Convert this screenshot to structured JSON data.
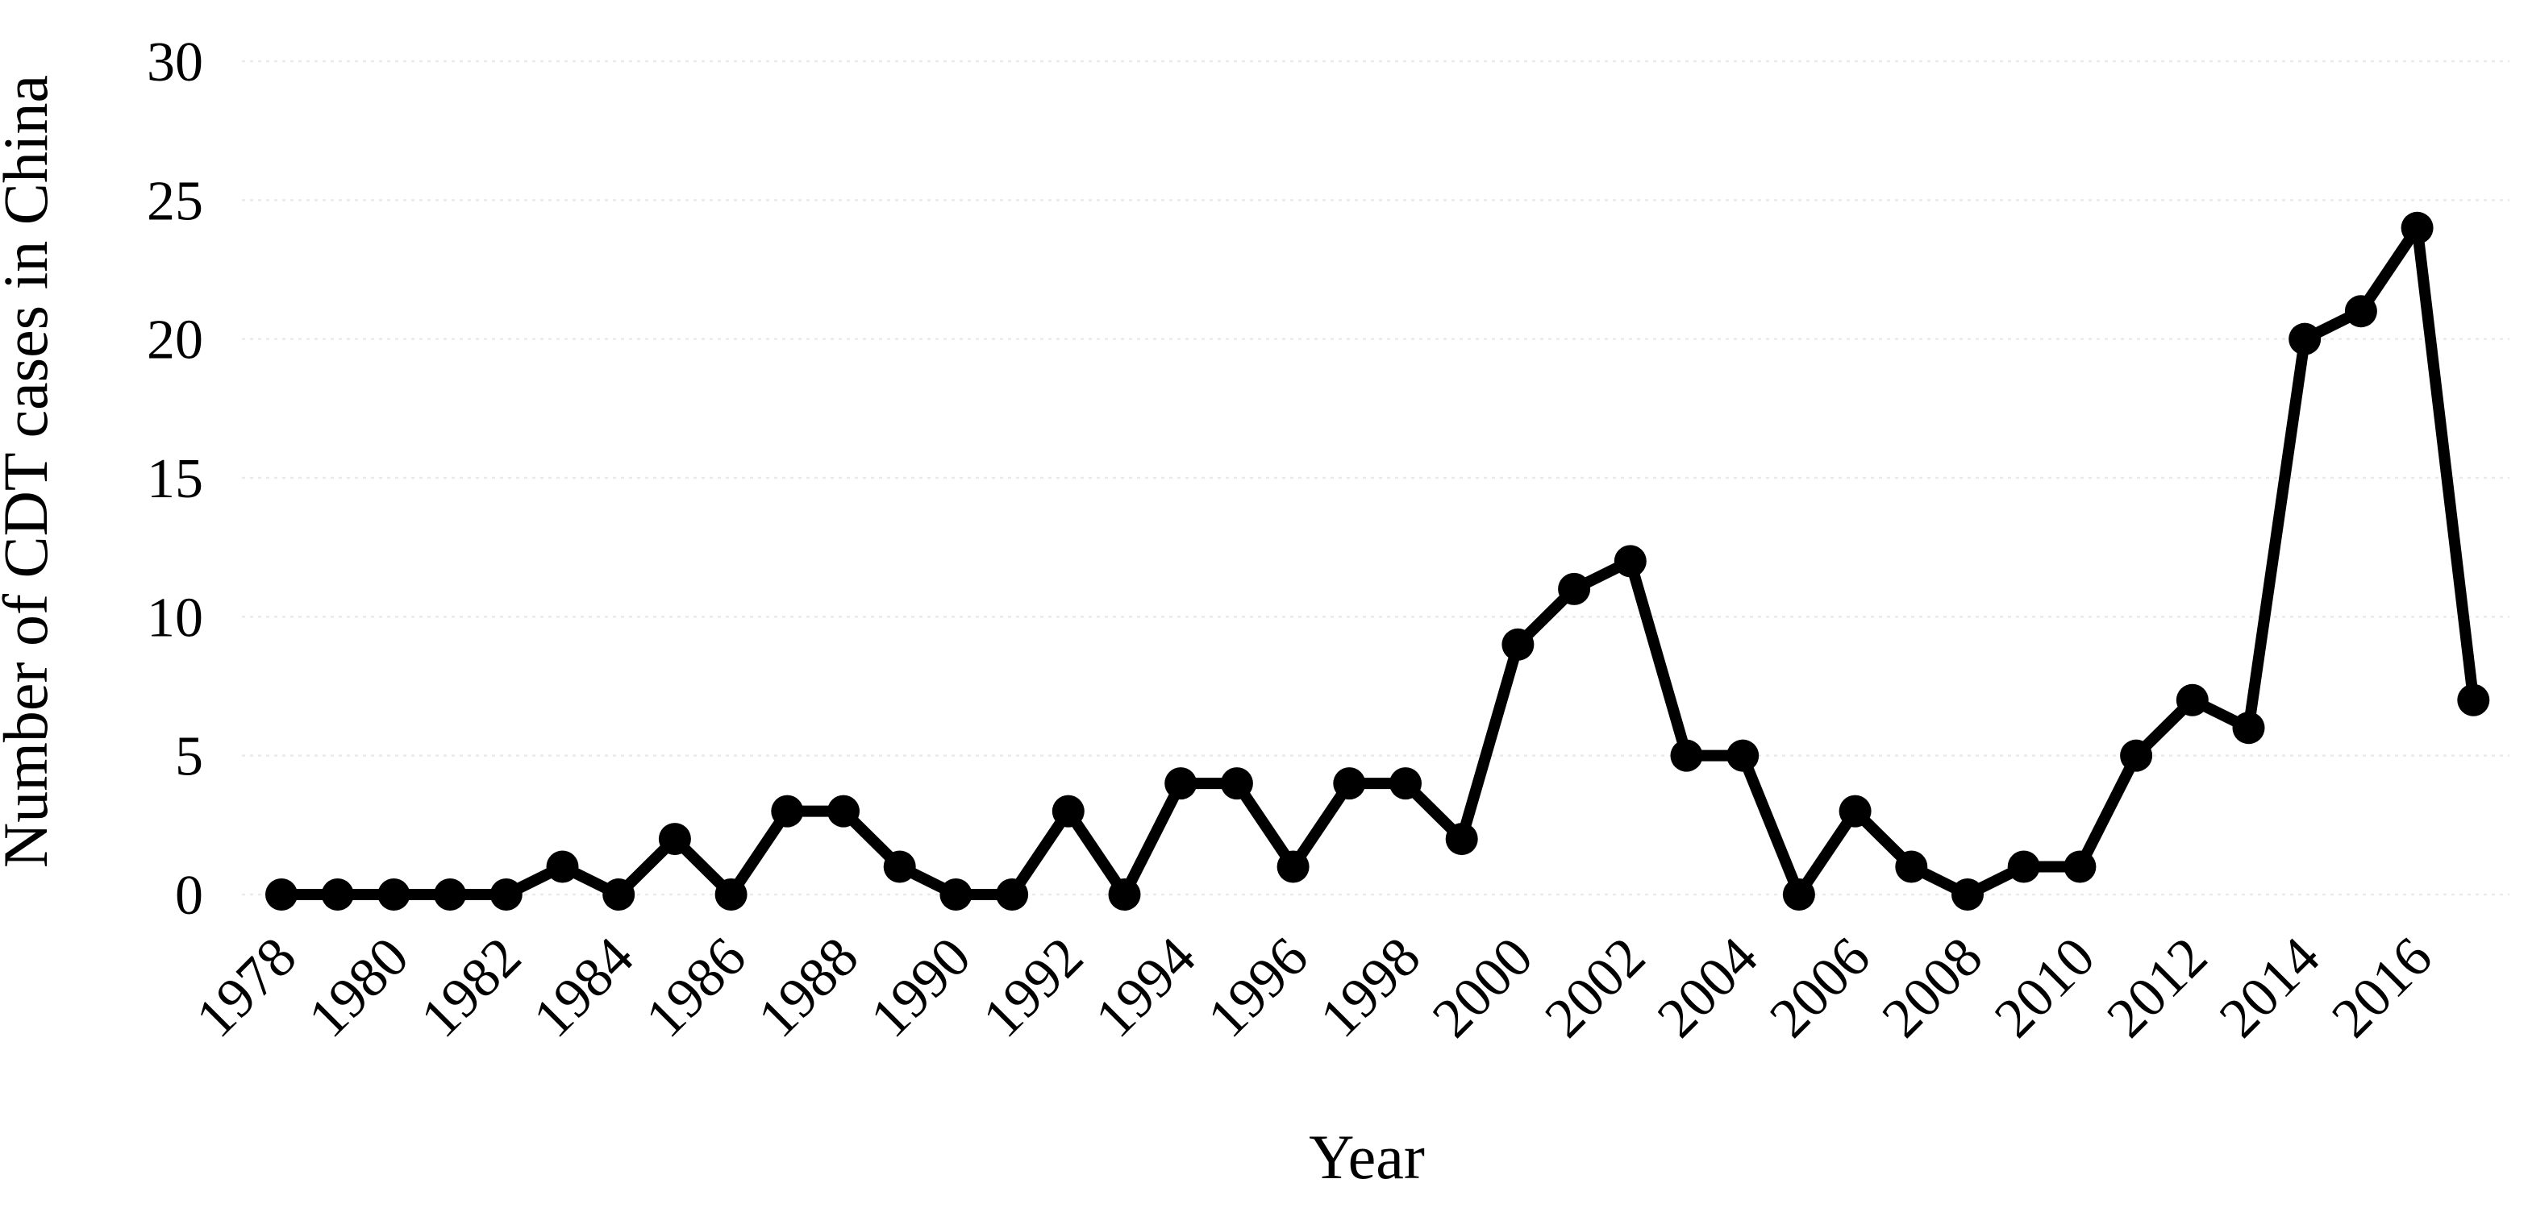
{
  "page": {
    "background": "#ffffff"
  },
  "chart_data": {
    "type": "line",
    "xlabel": "Year",
    "ylabel": "Number of CDT cases in China",
    "series_name": "Number of CDT cases in China",
    "x": [
      1978,
      1979,
      1980,
      1981,
      1982,
      1983,
      1984,
      1985,
      1986,
      1987,
      1988,
      1989,
      1990,
      1991,
      1992,
      1993,
      1994,
      1995,
      1996,
      1997,
      1998,
      1999,
      2000,
      2001,
      2002,
      2003,
      2004,
      2005,
      2006,
      2007,
      2008,
      2009,
      2010,
      2011,
      2012,
      2013,
      2014,
      2015,
      2016,
      2017
    ],
    "values": [
      0,
      0,
      0,
      0,
      0,
      1,
      0,
      2,
      0,
      3,
      3,
      1,
      0,
      0,
      3,
      0,
      4,
      4,
      1,
      4,
      4,
      2,
      9,
      11,
      12,
      5,
      5,
      0,
      3,
      1,
      0,
      1,
      1,
      5,
      7,
      6,
      20,
      21,
      24,
      7
    ],
    "x_tick_labels": [
      "1978",
      "1980",
      "1982",
      "1984",
      "1986",
      "1988",
      "1990",
      "1992",
      "1994",
      "1996",
      "1998",
      "2000",
      "2002",
      "2004",
      "2006",
      "2008",
      "2010",
      "2012",
      "2014",
      "2016"
    ],
    "y_ticks": [
      0,
      5,
      10,
      15,
      20,
      25,
      30
    ],
    "ylim": [
      0,
      30
    ],
    "xlim_years": [
      1978,
      2017
    ],
    "grid": "horizontal light dotted lines at every y tick",
    "legend": "none",
    "marker": "filled-circle",
    "colors": {
      "line": "#000000",
      "marker": "#000000",
      "gridline": "#eaeaea",
      "text": "#000000",
      "background": "#ffffff"
    }
  }
}
